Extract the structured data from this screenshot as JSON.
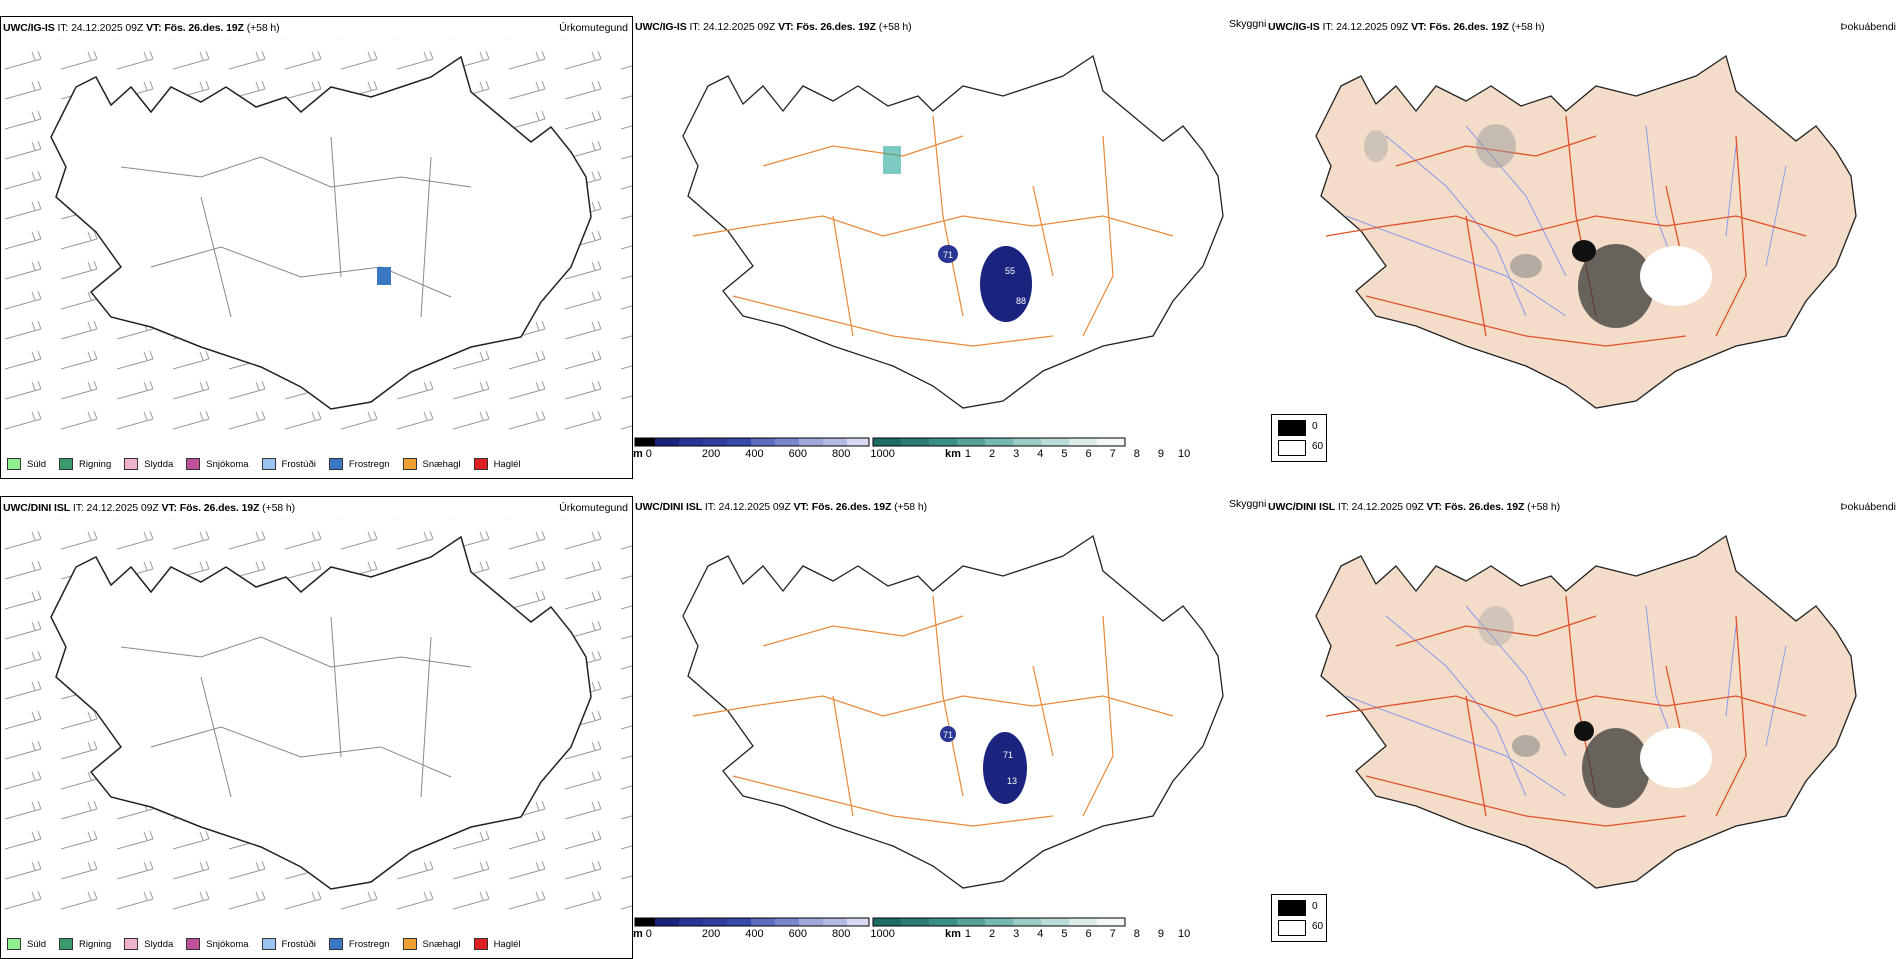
{
  "rows": [
    {
      "model": "UWC/IG-IS",
      "it_label": "IT:",
      "it": "24.12.2025 09Z",
      "vt_label": "VT:",
      "vt": "Fös. 26.des. 19Z",
      "lead": "(+58 h)",
      "labels": {
        "precip": "Úrkomutegund",
        "cloud": "Skyggni",
        "fog": "Þokuábendi"
      },
      "cloud_values": [
        "71",
        "55",
        "88"
      ]
    },
    {
      "model": "UWC/DINI ISL",
      "it_label": "IT:",
      "it": "24.12.2025 09Z",
      "vt_label": "VT:",
      "vt": "Fös. 26.des. 19Z",
      "lead": "(+58 h)",
      "labels": {
        "precip": "Úrkomutegund",
        "cloud": "Skyggni",
        "fog": "Þokuábendi"
      },
      "cloud_values": [
        "71",
        "71",
        "13"
      ]
    }
  ],
  "precip_legend": [
    {
      "label": "Súld",
      "color": "#90ee90"
    },
    {
      "label": "Rigning",
      "color": "#3c9a6e"
    },
    {
      "label": "Slydda",
      "color": "#f2b5cf"
    },
    {
      "label": "Snjókoma",
      "color": "#c0509a"
    },
    {
      "label": "Frostúði",
      "color": "#9cc6f0"
    },
    {
      "label": "Frostregn",
      "color": "#3a78c2"
    },
    {
      "label": "Snæhagl",
      "color": "#f0a030"
    },
    {
      "label": "Haglél",
      "color": "#e02020"
    }
  ],
  "cloud_base_bar": {
    "unit": "m",
    "ticks": [
      "0",
      "200",
      "400",
      "600",
      "800",
      "1000"
    ]
  },
  "cloud_top_bar": {
    "unit": "km",
    "ticks": [
      "1",
      "2",
      "3",
      "4",
      "5",
      "6",
      "7",
      "8",
      "9",
      "10"
    ]
  },
  "visibility_legend": {
    "black": "0",
    "white": "60"
  },
  "colors": {
    "road": "#e8893a",
    "road_red": "#e0502a",
    "land_fog": "#f3dcc8",
    "river": "#8899ee",
    "cloud_blue": "#1a237e"
  }
}
